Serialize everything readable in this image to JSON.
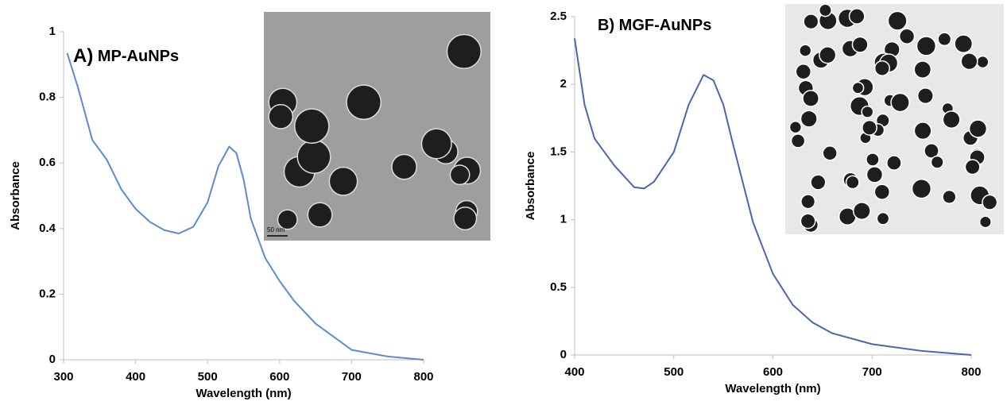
{
  "chart_data": [
    {
      "type": "line",
      "panel_label": "A)",
      "title": "MP-AuNPs",
      "x_label": "Wavelength (nm)",
      "y_label": "Absorbance",
      "inset_scale_label": "50 nm",
      "xlim": [
        300,
        800
      ],
      "xticks": [
        300,
        400,
        500,
        600,
        700,
        800
      ],
      "ylim": [
        0,
        1
      ],
      "yticks": [
        0,
        0.2,
        0.4,
        0.6,
        0.8,
        1
      ],
      "x": [
        305,
        320,
        340,
        360,
        380,
        400,
        420,
        440,
        460,
        480,
        500,
        515,
        530,
        540,
        550,
        560,
        580,
        600,
        620,
        650,
        700,
        750,
        800
      ],
      "series": [
        {
          "name": "MP-AuNPs",
          "color": "#5b8bd0",
          "values": [
            0.935,
            0.83,
            0.67,
            0.61,
            0.52,
            0.46,
            0.42,
            0.395,
            0.385,
            0.405,
            0.48,
            0.59,
            0.65,
            0.63,
            0.55,
            0.43,
            0.31,
            0.24,
            0.18,
            0.11,
            0.03,
            0.01,
            0.0
          ]
        }
      ]
    },
    {
      "type": "line",
      "panel_label": "B)",
      "title": "MGF-AuNPs",
      "x_label": "Wavelength (nm)",
      "y_label": "Absorbance",
      "xlim": [
        400,
        800
      ],
      "xticks": [
        400,
        500,
        600,
        700,
        800
      ],
      "ylim": [
        0,
        2.5
      ],
      "yticks": [
        0,
        0.5,
        1,
        1.5,
        2,
        2.5
      ],
      "x": [
        400,
        410,
        420,
        440,
        460,
        470,
        480,
        500,
        515,
        530,
        540,
        550,
        560,
        580,
        600,
        620,
        640,
        660,
        700,
        750,
        800
      ],
      "series": [
        {
          "name": "MGF-AuNPs",
          "color": "#4a66ac",
          "values": [
            2.34,
            1.85,
            1.6,
            1.4,
            1.24,
            1.23,
            1.28,
            1.5,
            1.85,
            2.07,
            2.03,
            1.85,
            1.55,
            0.98,
            0.6,
            0.37,
            0.24,
            0.16,
            0.08,
            0.03,
            0.0
          ]
        }
      ]
    }
  ]
}
